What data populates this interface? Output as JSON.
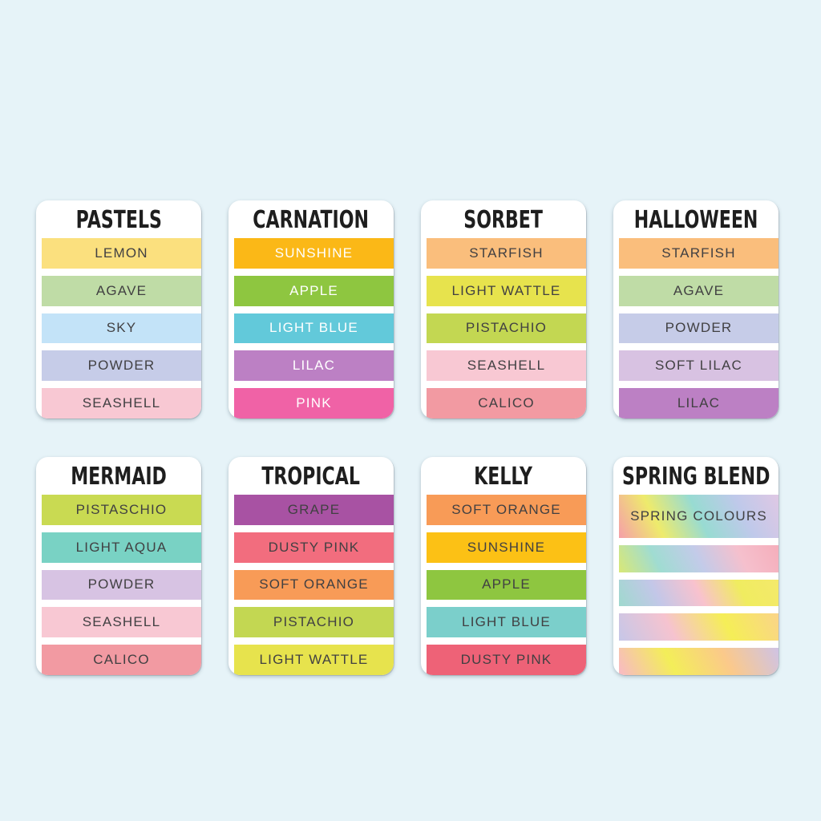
{
  "page": {
    "background_color": "#e6f3f8",
    "card_background": "#ffffff",
    "title_color": "#1e1e1e",
    "dark_label_color": "#414042",
    "light_label_color": "#ffffff"
  },
  "cards": [
    {
      "title": "PASTELS",
      "swatches": [
        {
          "label": "LEMON",
          "color": "#fbe07e",
          "text": "dark"
        },
        {
          "label": "AGAVE",
          "color": "#bfdca6",
          "text": "dark"
        },
        {
          "label": "SKY",
          "color": "#c3e3f8",
          "text": "dark"
        },
        {
          "label": "POWDER",
          "color": "#c6cce8",
          "text": "dark"
        },
        {
          "label": "SEASHELL",
          "color": "#f8c8d3",
          "text": "dark"
        }
      ]
    },
    {
      "title": "CARNATION",
      "swatches": [
        {
          "label": "SUNSHINE",
          "color": "#fbb817",
          "text": "light"
        },
        {
          "label": "APPLE",
          "color": "#8ec640",
          "text": "light"
        },
        {
          "label": "LIGHT BLUE",
          "color": "#62c9da",
          "text": "light"
        },
        {
          "label": "LILAC",
          "color": "#bc80c4",
          "text": "light"
        },
        {
          "label": "PINK",
          "color": "#f062a6",
          "text": "light"
        }
      ]
    },
    {
      "title": "SORBET",
      "swatches": [
        {
          "label": "STARFISH",
          "color": "#fabe7c",
          "text": "dark"
        },
        {
          "label": "LIGHT WATTLE",
          "color": "#e7e34d",
          "text": "dark"
        },
        {
          "label": "PISTACHIO",
          "color": "#c3d752",
          "text": "dark"
        },
        {
          "label": "SEASHELL",
          "color": "#f8c8d3",
          "text": "dark"
        },
        {
          "label": "CALICO",
          "color": "#f29aa2",
          "text": "dark"
        }
      ]
    },
    {
      "title": "HALLOWEEN",
      "swatches": [
        {
          "label": "STARFISH",
          "color": "#fabe7c",
          "text": "dark"
        },
        {
          "label": "AGAVE",
          "color": "#bfdca6",
          "text": "dark"
        },
        {
          "label": "POWDER",
          "color": "#c6cce8",
          "text": "dark"
        },
        {
          "label": "SOFT LILAC",
          "color": "#d8c2e2",
          "text": "dark"
        },
        {
          "label": "LILAC",
          "color": "#bc80c4",
          "text": "dark"
        }
      ]
    },
    {
      "title": "MERMAID",
      "swatches": [
        {
          "label": "PISTASCHIO",
          "color": "#c9da52",
          "text": "dark"
        },
        {
          "label": "LIGHT AQUA",
          "color": "#79d2c4",
          "text": "dark"
        },
        {
          "label": "POWDER",
          "color": "#d7c3e3",
          "text": "dark"
        },
        {
          "label": "SEASHELL",
          "color": "#f8c8d3",
          "text": "dark"
        },
        {
          "label": "CALICO",
          "color": "#f29aa2",
          "text": "dark"
        }
      ]
    },
    {
      "title": "TROPICAL",
      "swatches": [
        {
          "label": "GRAPE",
          "color": "#a852a3",
          "text": "dark"
        },
        {
          "label": "DUSTY PINK",
          "color": "#f26d7e",
          "text": "dark"
        },
        {
          "label": "SOFT ORANGE",
          "color": "#f89b57",
          "text": "dark"
        },
        {
          "label": "PISTACHIO",
          "color": "#c3d752",
          "text": "dark"
        },
        {
          "label": "LIGHT WATTLE",
          "color": "#e7e34d",
          "text": "dark"
        }
      ]
    },
    {
      "title": "KELLY",
      "swatches": [
        {
          "label": "SOFT ORANGE",
          "color": "#f89b57",
          "text": "dark"
        },
        {
          "label": "SUNSHINE",
          "color": "#fcc115",
          "text": "dark"
        },
        {
          "label": "APPLE",
          "color": "#8ec640",
          "text": "dark"
        },
        {
          "label": "LIGHT BLUE",
          "color": "#7bcfcb",
          "text": "dark"
        },
        {
          "label": "DUSTY PINK",
          "color": "#ee6277",
          "text": "dark"
        }
      ]
    },
    {
      "title": "SPRING BLEND",
      "swatches": [
        {
          "label": "SPRING COLOURS",
          "gradient": [
            "#f59fa9",
            "#eeeb6c",
            "#98dbd2",
            "#bfc9ea",
            "#dfc8e4"
          ],
          "text": "dark"
        },
        {
          "label": "",
          "gradient": [
            "#d9e876",
            "#a0dcd2",
            "#c3cbe9",
            "#f5c0cd",
            "#f5aebb"
          ]
        },
        {
          "label": "",
          "gradient": [
            "#9fd9ce",
            "#c3c7e8",
            "#f8c2ce",
            "#f0ec60",
            "#f4e96b"
          ]
        },
        {
          "label": "",
          "gradient": [
            "#c6c7e8",
            "#f6c3cf",
            "#f5ee57",
            "#fad489"
          ]
        },
        {
          "label": "",
          "gradient": [
            "#f8b9c6",
            "#f3ee59",
            "#fbc98b",
            "#cfc3e5"
          ]
        }
      ]
    }
  ],
  "gradient_angle_deg": 64
}
